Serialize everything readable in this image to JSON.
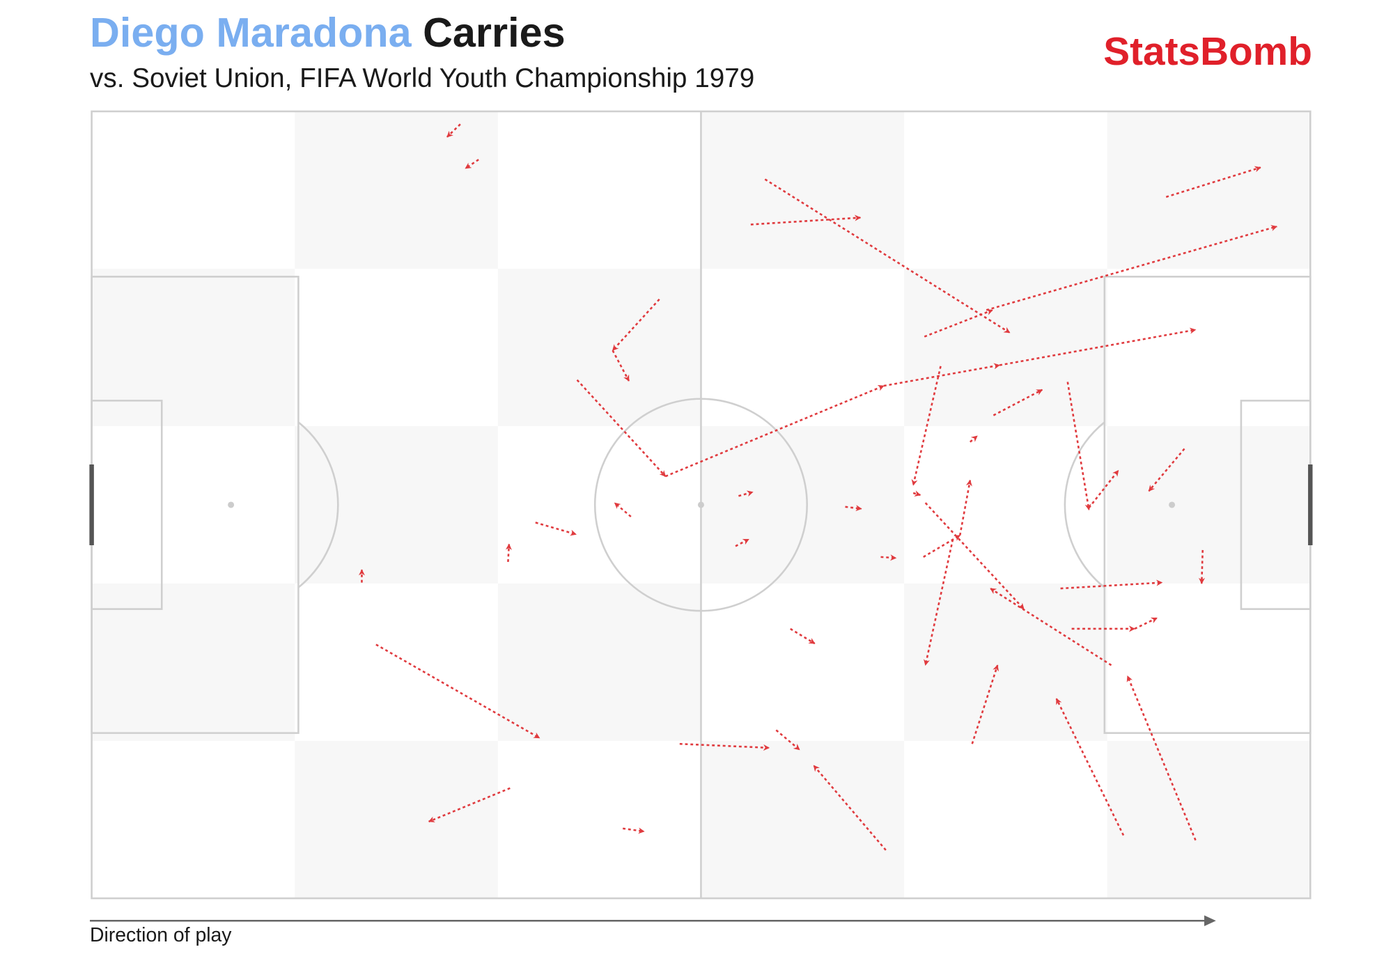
{
  "chart_data": {
    "type": "carries",
    "player": "Diego Maradona",
    "title": "Carries",
    "subtitle": "vs. Soviet Union, FIFA World Youth Championship 1979",
    "brand": "StatsBomb",
    "x_label": "Direction of play",
    "color": "#e03a3e",
    "player_color": "#7aaef0",
    "xlim": [
      0,
      120
    ],
    "ylim": [
      0,
      80
    ],
    "carries": {
      "x": [
        36.3,
        38.1,
        66.3,
        64.9,
        105.8,
        88.1,
        82.0,
        55.9,
        51.3,
        47.8,
        56.5,
        78.0,
        89.4,
        88.8,
        83.6,
        96.1,
        86.5,
        80.9,
        98.2,
        107.6,
        109.4,
        95.4,
        96.5,
        102.7,
        100.4,
        82.1,
        81.9,
        85.5,
        84.8,
        86.7,
        101.6,
        108.7,
        78.2,
        57.9,
        67.4,
        68.8,
        74.2,
        77.7,
        63.4,
        63.7,
        53.1,
        43.7,
        41.0,
        26.6,
        28.0,
        41.2,
        52.3
      ],
      "y": [
        1.3,
        4.9,
        6.9,
        11.5,
        8.7,
        20.2,
        22.9,
        19.1,
        24.3,
        27.3,
        37.1,
        27.9,
        25.8,
        30.9,
        25.9,
        27.5,
        33.6,
        38.8,
        40.3,
        34.3,
        44.6,
        48.5,
        52.6,
        52.6,
        56.3,
        39.8,
        45.3,
        43.1,
        43.5,
        64.3,
        73.6,
        74.1,
        75.1,
        64.3,
        62.9,
        52.6,
        40.2,
        45.3,
        44.2,
        39.1,
        41.2,
        41.8,
        45.8,
        47.9,
        54.2,
        68.8,
        72.9
      ],
      "end_x": [
        35.0,
        36.8,
        90.4,
        75.7,
        115.1,
        116.7,
        88.7,
        51.3,
        52.9,
        56.5,
        78.0,
        89.4,
        108.7,
        93.6,
        80.9,
        98.2,
        87.2,
        81.6,
        101.1,
        104.1,
        109.3,
        105.4,
        102.7,
        104.9,
        88.5,
        91.8,
        85.5,
        86.5,
        82.1,
        89.2,
        95.0,
        102.0,
        71.1,
        66.7,
        69.7,
        71.2,
        75.8,
        79.2,
        64.7,
        65.1,
        51.5,
        47.7,
        41.1,
        26.6,
        44.1,
        33.2,
        54.4
      ],
      "end_y": [
        2.6,
        5.8,
        22.5,
        10.8,
        5.7,
        11.7,
        20.2,
        24.3,
        27.4,
        37.1,
        27.9,
        25.8,
        22.2,
        28.3,
        38.0,
        40.5,
        33.0,
        39.0,
        36.5,
        38.6,
        48.0,
        47.9,
        52.6,
        51.5,
        48.5,
        50.6,
        43.1,
        37.5,
        56.3,
        56.3,
        59.7,
        57.4,
        66.5,
        64.7,
        64.9,
        54.1,
        40.4,
        45.4,
        43.5,
        38.7,
        39.8,
        43.0,
        44.0,
        46.6,
        63.7,
        72.2,
        73.2
      ]
    }
  }
}
